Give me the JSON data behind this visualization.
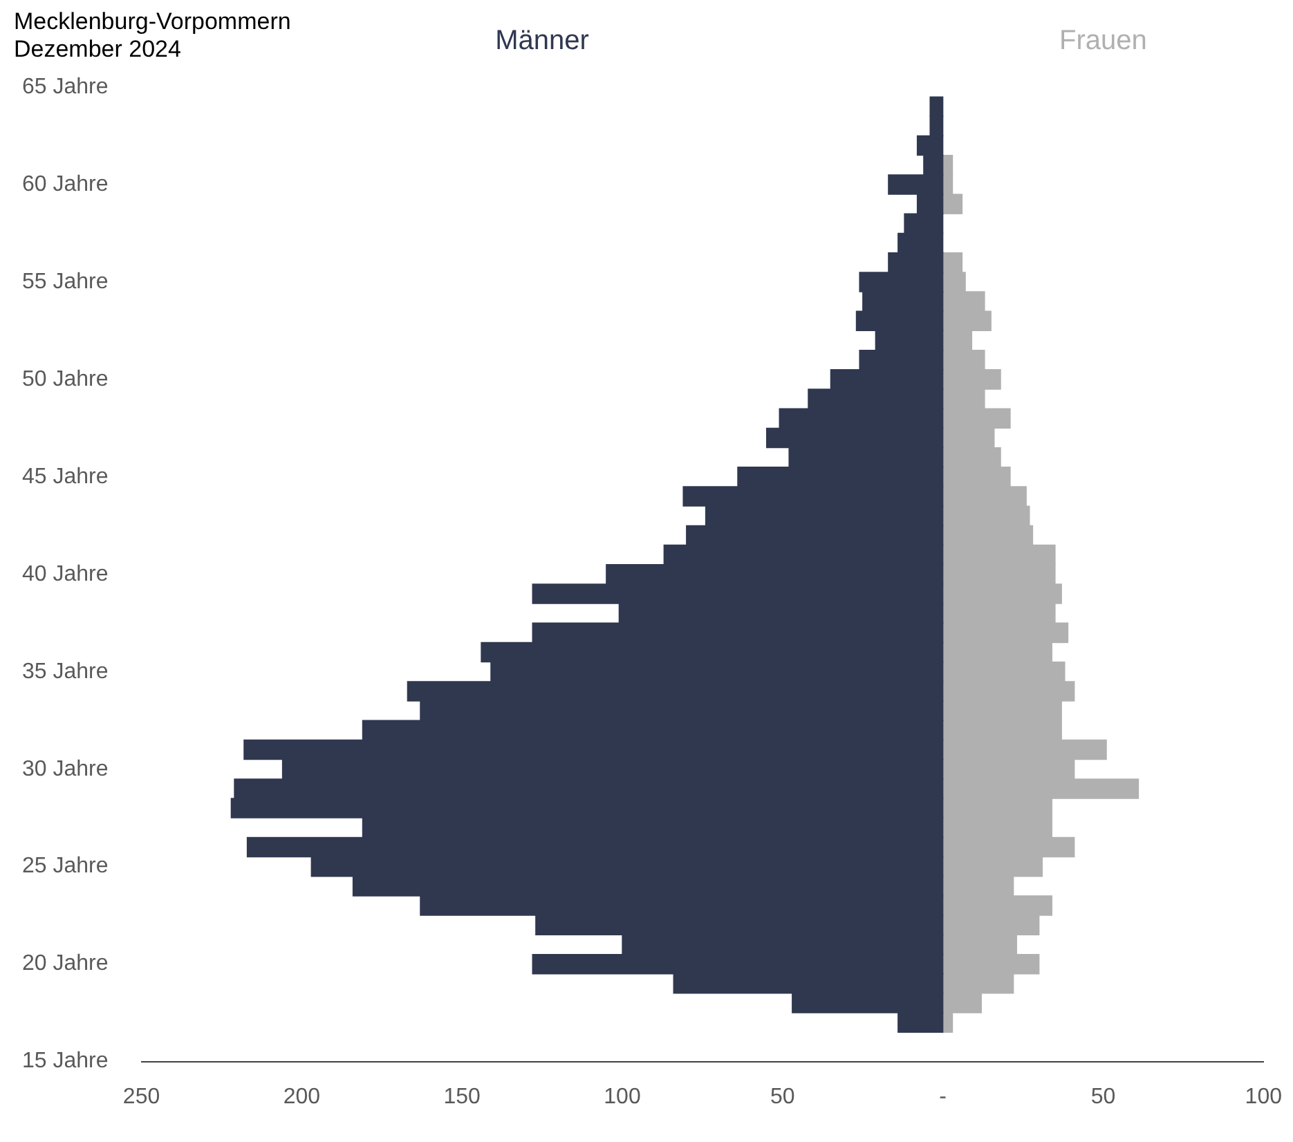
{
  "chart_data": {
    "type": "bar",
    "orientation": "horizontal",
    "stacked": true,
    "title": "Mecklenburg-Vorpommern",
    "subtitle": "Dezember 2024",
    "x": [
      17,
      18,
      19,
      20,
      21,
      22,
      23,
      24,
      25,
      26,
      27,
      28,
      29,
      30,
      31,
      32,
      33,
      34,
      35,
      36,
      37,
      38,
      39,
      40,
      41,
      42,
      43,
      44,
      45,
      46,
      47,
      48,
      49,
      50,
      51,
      52,
      53,
      54,
      55,
      56,
      57,
      58,
      59,
      60,
      61,
      62,
      63,
      64
    ],
    "series": [
      {
        "name": "Männer",
        "color": "#303850",
        "values": [
          -14,
          -47,
          -84,
          -128,
          -100,
          -127,
          -163,
          -184,
          -197,
          -217,
          -181,
          -222,
          -221,
          -206,
          -218,
          -181,
          -163,
          -167,
          -141,
          -144,
          -128,
          -101,
          -128,
          -105,
          -87,
          -80,
          -74,
          -81,
          -64,
          -48,
          -55,
          -51,
          -42,
          -35,
          -26,
          -21,
          -27,
          -25,
          -26,
          -17,
          -14,
          -12,
          -8,
          -17,
          -6,
          -8,
          -4,
          -4
        ]
      },
      {
        "name": "Frauen",
        "color": "#b0b0b0",
        "values": [
          3,
          12,
          22,
          30,
          23,
          30,
          34,
          22,
          31,
          41,
          34,
          34,
          61,
          41,
          51,
          37,
          37,
          41,
          38,
          34,
          39,
          35,
          37,
          35,
          35,
          28,
          27,
          26,
          21,
          18,
          16,
          21,
          13,
          18,
          13,
          9,
          15,
          13,
          7,
          6,
          0,
          0,
          6,
          3,
          3,
          0,
          0,
          0
        ]
      }
    ],
    "xlim": [
      -250,
      100
    ],
    "xticks": [
      {
        "value": -250,
        "label": "250"
      },
      {
        "value": -200,
        "label": "200"
      },
      {
        "value": -150,
        "label": "150"
      },
      {
        "value": -100,
        "label": "100"
      },
      {
        "value": -50,
        "label": "50"
      },
      {
        "value": 0,
        "label": "-"
      },
      {
        "value": 50,
        "label": "50"
      },
      {
        "value": 100,
        "label": "100"
      }
    ],
    "ylim": [
      15,
      65
    ],
    "yticks": [
      {
        "value": 15,
        "label": "15 Jahre"
      },
      {
        "value": 20,
        "label": "20 Jahre"
      },
      {
        "value": 25,
        "label": "25 Jahre"
      },
      {
        "value": 30,
        "label": "30 Jahre"
      },
      {
        "value": 35,
        "label": "35 Jahre"
      },
      {
        "value": 40,
        "label": "40 Jahre"
      },
      {
        "value": 45,
        "label": "45 Jahre"
      },
      {
        "value": 50,
        "label": "50 Jahre"
      },
      {
        "value": 55,
        "label": "55 Jahre"
      },
      {
        "value": 60,
        "label": "60 Jahre"
      },
      {
        "value": 65,
        "label": "65 Jahre"
      }
    ]
  }
}
